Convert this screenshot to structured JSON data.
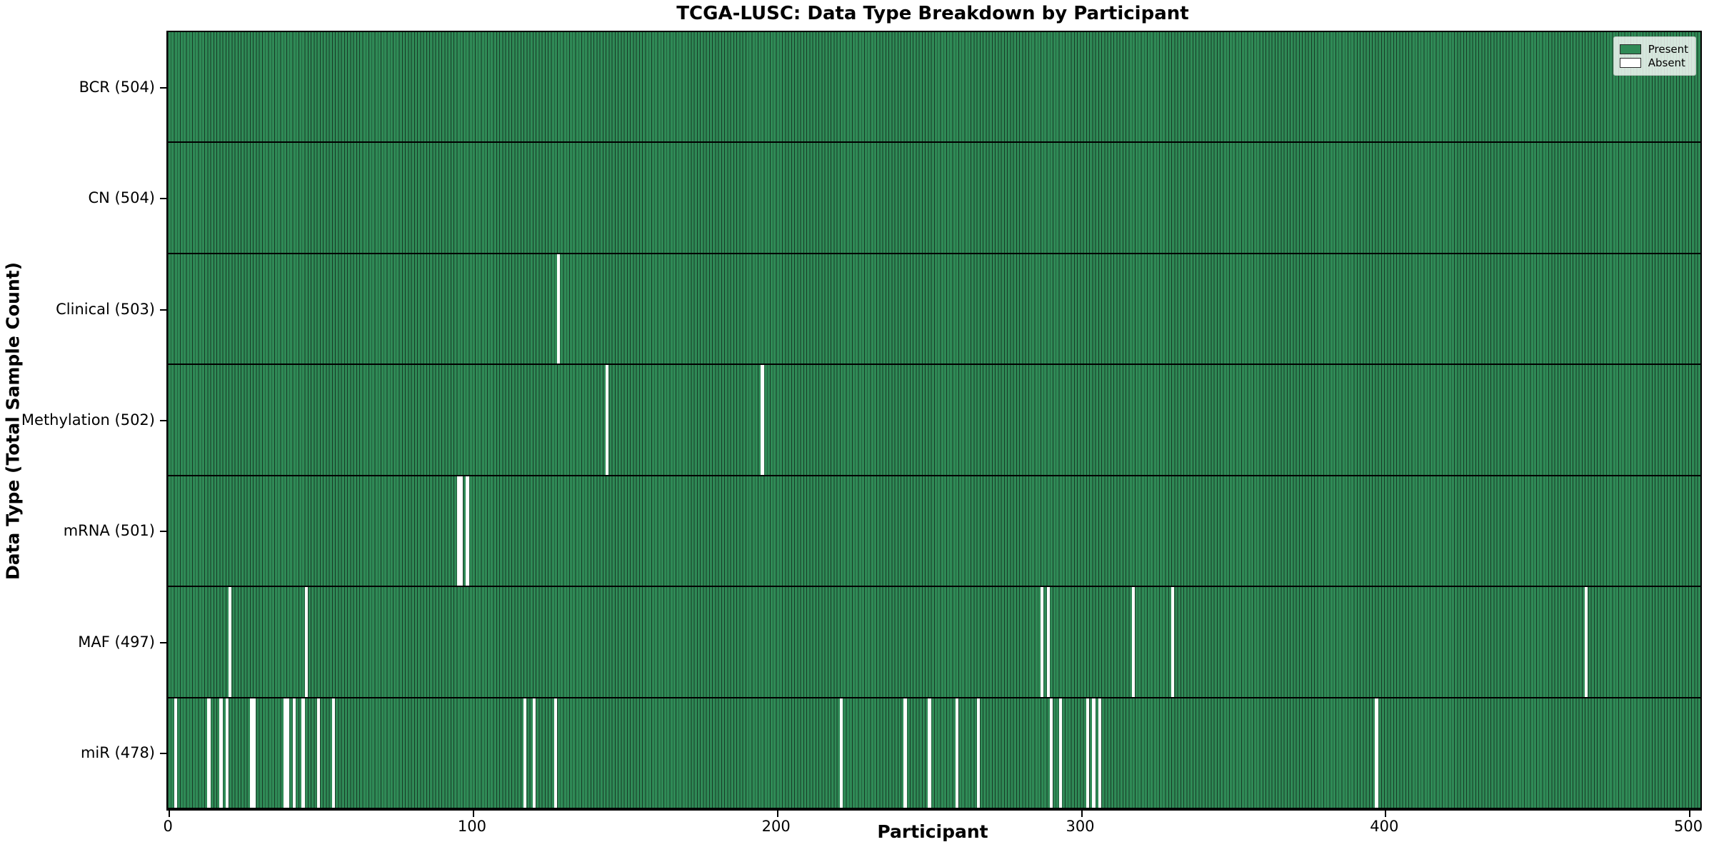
{
  "chart_data": {
    "type": "heatmap",
    "title": "TCGA-LUSC: Data Type Breakdown by Participant",
    "xlabel": "Participant",
    "ylabel": "Data Type (Total Sample Count)",
    "x_ticks": [
      0,
      100,
      200,
      300,
      400,
      500
    ],
    "xlim": [
      0,
      504
    ],
    "n_participants": 504,
    "legend": {
      "position": "upper right",
      "entries": [
        {
          "label": "Present",
          "color": "#2f8a56"
        },
        {
          "label": "Absent",
          "color": "#ffffff"
        }
      ]
    },
    "colors": {
      "present_fill": "#2f8a56",
      "bar_edge": "#173a26",
      "absent_fill": "#ffffff",
      "separator": "#000000"
    },
    "grid": false,
    "rows": [
      {
        "label": "BCR (504)",
        "data_type": "BCR",
        "total_count": 504,
        "absent_participants": []
      },
      {
        "label": "CN (504)",
        "data_type": "CN",
        "total_count": 504,
        "absent_participants": []
      },
      {
        "label": "Clinical (503)",
        "data_type": "Clinical",
        "total_count": 503,
        "absent_participants": [
          128
        ]
      },
      {
        "label": "Methylation (502)",
        "data_type": "Methylation",
        "total_count": 502,
        "absent_participants": [
          144,
          195
        ]
      },
      {
        "label": "mRNA (501)",
        "data_type": "mRNA",
        "total_count": 501,
        "absent_participants": [
          95,
          96,
          98
        ]
      },
      {
        "label": "MAF (497)",
        "data_type": "MAF",
        "total_count": 497,
        "absent_participants": [
          20,
          45,
          287,
          289,
          317,
          330,
          466
        ]
      },
      {
        "label": "miR (478)",
        "data_type": "miR",
        "total_count": 478,
        "absent_participants": [
          2,
          13,
          17,
          19,
          27,
          28,
          38,
          39,
          41,
          44,
          49,
          54,
          117,
          120,
          127,
          221,
          242,
          250,
          259,
          266,
          290,
          293,
          302,
          304,
          306,
          397
        ]
      }
    ]
  }
}
